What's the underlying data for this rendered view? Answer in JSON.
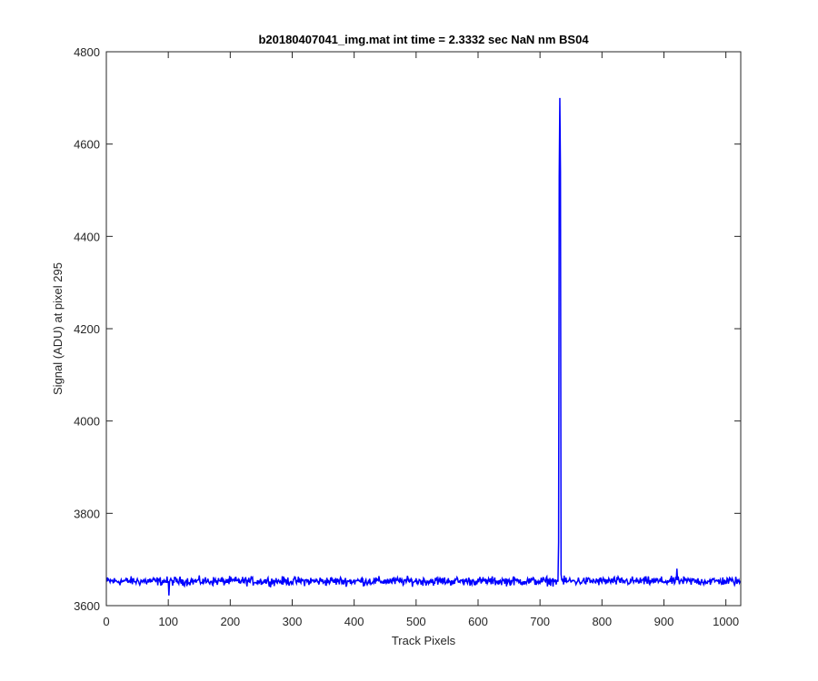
{
  "chart_data": {
    "type": "line",
    "title": "b20180407041_img.mat int time = 2.3332 sec  NaN nm BS04",
    "xlabel": "Track Pixels",
    "ylabel": "Signal (ADU) at pixel 295",
    "xlim": [
      0,
      1024
    ],
    "ylim": [
      3600,
      4800
    ],
    "xticks": [
      0,
      100,
      200,
      300,
      400,
      500,
      600,
      700,
      800,
      900,
      1000
    ],
    "yticks": [
      3600,
      3800,
      4000,
      4200,
      4400,
      4600,
      4800
    ],
    "grid": false,
    "series": [
      {
        "color": "#0000ff",
        "baseline": 3653,
        "noise_range": [
          3630,
          3675
        ],
        "x": [
          0,
          100,
          101,
          102,
          729,
          730,
          731,
          732,
          733,
          734,
          735,
          736,
          920,
          921,
          922,
          1023
        ],
        "y": [
          3655,
          3653,
          3622,
          3652,
          3652,
          3738,
          4530,
          4700,
          4540,
          3668,
          3656,
          3654,
          3656,
          3680,
          3655,
          3654
        ]
      }
    ]
  },
  "colors": {
    "line": "#0000ff",
    "axis": "#262626",
    "background": "#ffffff"
  }
}
